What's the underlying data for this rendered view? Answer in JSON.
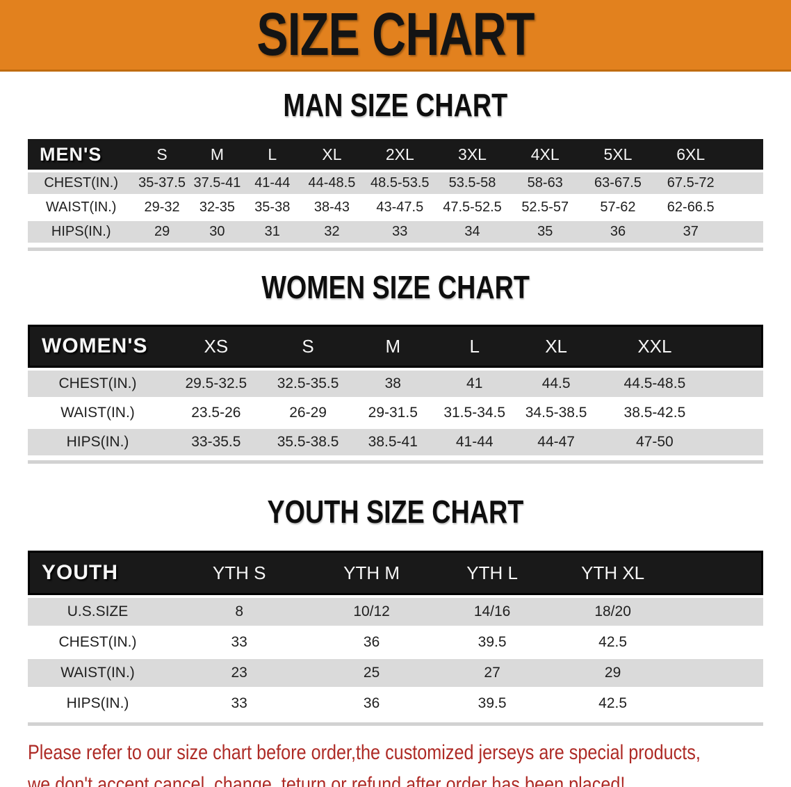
{
  "banner": {
    "title": "SIZE CHART"
  },
  "sections": [
    {
      "heading": "MAN SIZE CHART",
      "corner": "MEN'S",
      "columns": [
        "S",
        "M",
        "L",
        "XL",
        "2XL",
        "3XL",
        "4XL",
        "5XL",
        "6XL"
      ],
      "rows": [
        {
          "label": "CHEST(IN.)",
          "values": [
            "35-37.5",
            "37.5-41",
            "41-44",
            "44-48.5",
            "48.5-53.5",
            "53.5-58",
            "58-63",
            "63-67.5",
            "67.5-72"
          ]
        },
        {
          "label": "WAIST(IN.)",
          "values": [
            "29-32",
            "32-35",
            "35-38",
            "38-43",
            "43-47.5",
            "47.5-52.5",
            "52.5-57",
            "57-62",
            "62-66.5"
          ]
        },
        {
          "label": "HIPS(IN.)",
          "values": [
            "29",
            "30",
            "31",
            "32",
            "33",
            "34",
            "35",
            "36",
            "37"
          ]
        }
      ]
    },
    {
      "heading": "WOMEN SIZE CHART",
      "corner": "WOMEN'S",
      "columns": [
        "XS",
        "S",
        "M",
        "L",
        "XL",
        "XXL"
      ],
      "rows": [
        {
          "label": "CHEST(IN.)",
          "values": [
            "29.5-32.5",
            "32.5-35.5",
            "38",
            "41",
            "44.5",
            "44.5-48.5"
          ]
        },
        {
          "label": "WAIST(IN.)",
          "values": [
            "23.5-26",
            "26-29",
            "29-31.5",
            "31.5-34.5",
            "34.5-38.5",
            "38.5-42.5"
          ]
        },
        {
          "label": "HIPS(IN.)",
          "values": [
            "33-35.5",
            "35.5-38.5",
            "38.5-41",
            "41-44",
            "44-47",
            "47-50"
          ]
        }
      ]
    },
    {
      "heading": "YOUTH SIZE CHART",
      "corner": "YOUTH",
      "columns": [
        "YTH S",
        "YTH M",
        "YTH L",
        "YTH XL"
      ],
      "rows": [
        {
          "label": "U.S.SIZE",
          "values": [
            "8",
            "10/12",
            "14/16",
            "18/20"
          ]
        },
        {
          "label": "CHEST(IN.)",
          "values": [
            "33",
            "36",
            "39.5",
            "42.5"
          ]
        },
        {
          "label": "WAIST(IN.)",
          "values": [
            "23",
            "25",
            "27",
            "29"
          ]
        },
        {
          "label": "HIPS(IN.)",
          "values": [
            "33",
            "36",
            "39.5",
            "42.5"
          ]
        }
      ]
    }
  ],
  "footer": {
    "line1": "Please refer to our size chart before order,the customized jerseys are special products,",
    "line2": "we don't accept cancel, change, teturn or refund after order has been placed!"
  },
  "colors": {
    "banner_orange": "#E2811E",
    "header_bar_black": "#191919",
    "row_gray": "#DADADA",
    "row_white": "#FFFFFF",
    "note_red": "#AE2B26"
  }
}
